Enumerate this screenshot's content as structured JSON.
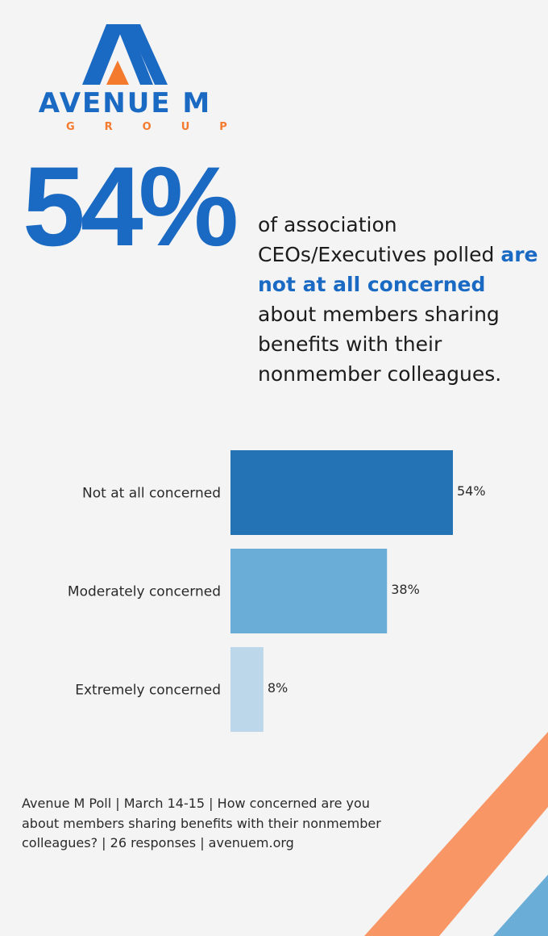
{
  "logo": {
    "name": "AVENUE M",
    "sub": "GROUP",
    "colors": {
      "blue": "#1a6ac4",
      "orange": "#f47a2e"
    }
  },
  "headline": {
    "percent": "54%",
    "line1": "of association CEOs/Executives polled",
    "highlight": "are not at all concerned",
    "line2": "about members sharing benefits with their nonmember colleagues."
  },
  "chart_data": {
    "type": "bar",
    "orientation": "horizontal",
    "categories": [
      "Not at all concerned",
      "Moderately concerned",
      "Extremely concerned"
    ],
    "values": [
      54,
      38,
      8
    ],
    "value_labels": [
      "54%",
      "38%",
      "8%"
    ],
    "colors": [
      "#2373b5",
      "#6aaed8",
      "#bdd7ea"
    ],
    "xlim": [
      0,
      100
    ],
    "grid": false
  },
  "footnote": "Avenue M Poll | March 14-15 | How concerned are you about members sharing benefits with their nonmember colleagues? | 26 responses | avenuem.org",
  "decor": {
    "stripe_orange": "#f89665",
    "stripe_blue": "#6aaed8"
  }
}
